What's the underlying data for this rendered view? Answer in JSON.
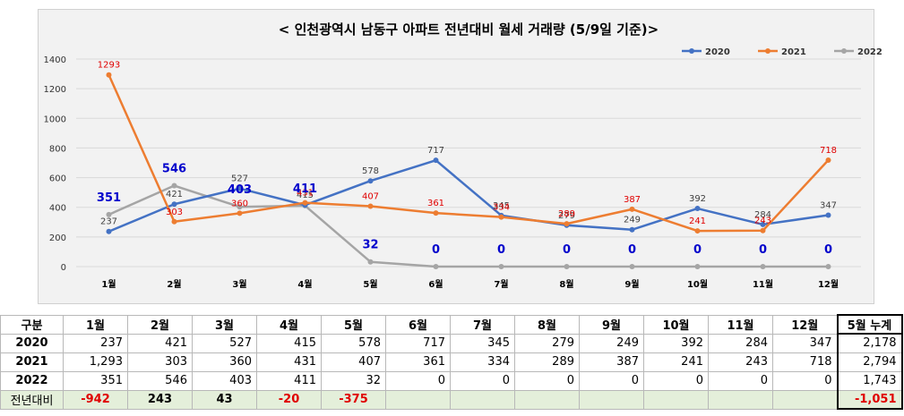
{
  "chart_data": {
    "type": "line",
    "title": "< 인천광역시 남동구 아파트 전년대비 월세 거래량 (5/9일 기준)>",
    "categories": [
      "1월",
      "2월",
      "3월",
      "4월",
      "5월",
      "6월",
      "7월",
      "8월",
      "9월",
      "10월",
      "11월",
      "12월"
    ],
    "ylim": [
      0,
      1400
    ],
    "yticks": [
      0,
      200,
      400,
      600,
      800,
      1000,
      1200,
      1400
    ],
    "grid": true,
    "legend": "top-right",
    "series": [
      {
        "name": "2020",
        "color": "#4472c4",
        "values": [
          237,
          421,
          527,
          415,
          578,
          717,
          345,
          279,
          249,
          392,
          284,
          347
        ]
      },
      {
        "name": "2021",
        "color": "#ed7d31",
        "values": [
          1293,
          303,
          360,
          431,
          407,
          361,
          334,
          289,
          387,
          241,
          243,
          718
        ]
      },
      {
        "name": "2022",
        "color": "#a5a5a5",
        "values": [
          351,
          546,
          403,
          411,
          32,
          0,
          0,
          0,
          0,
          0,
          0,
          0
        ]
      }
    ]
  },
  "table": {
    "header": [
      "구분",
      "1월",
      "2월",
      "3월",
      "4월",
      "5월",
      "6월",
      "7월",
      "8월",
      "9월",
      "10월",
      "11월",
      "12월",
      "5월 누계"
    ],
    "rows": [
      {
        "label": "2020",
        "values": [
          "237",
          "421",
          "527",
          "415",
          "578",
          "717",
          "345",
          "279",
          "249",
          "392",
          "284",
          "347"
        ],
        "total": "2,178"
      },
      {
        "label": "2021",
        "values": [
          "1,293",
          "303",
          "360",
          "431",
          "407",
          "361",
          "334",
          "289",
          "387",
          "241",
          "243",
          "718"
        ],
        "total": "2,794"
      },
      {
        "label": "2022",
        "values": [
          "351",
          "546",
          "403",
          "411",
          "32",
          "0",
          "0",
          "0",
          "0",
          "0",
          "0",
          "0"
        ],
        "total": "1,743"
      }
    ],
    "diff": {
      "label": "전년대비",
      "values": [
        "-942",
        "243",
        "43",
        "-20",
        "-375",
        "",
        "",
        "",
        "",
        "",
        "",
        ""
      ],
      "total": "-1,051"
    }
  }
}
